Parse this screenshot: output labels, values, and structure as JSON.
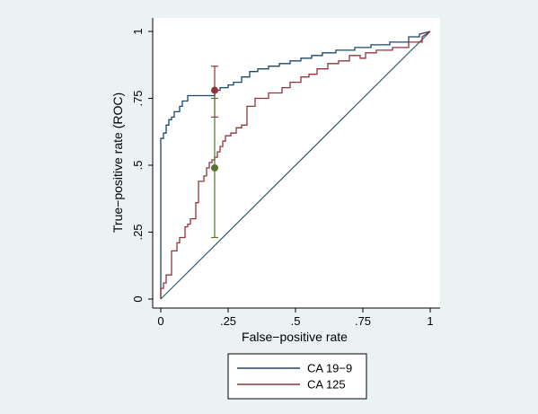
{
  "chart_data": {
    "type": "line",
    "xlabel": "False−positive rate",
    "ylabel": "True−positive rate (ROC)",
    "xlim": [
      0,
      1
    ],
    "ylim": [
      0,
      1
    ],
    "x_ticks": [
      {
        "value": 0,
        "label": "0"
      },
      {
        "value": 0.25,
        "label": ".25"
      },
      {
        "value": 0.5,
        "label": ".5"
      },
      {
        "value": 0.75,
        "label": ".75"
      },
      {
        "value": 1,
        "label": "1"
      }
    ],
    "y_ticks": [
      {
        "value": 0,
        "label": "0"
      },
      {
        "value": 0.25,
        "label": ".25"
      },
      {
        "value": 0.5,
        "label": ".5"
      },
      {
        "value": 0.75,
        "label": ".75"
      },
      {
        "value": 1,
        "label": "1"
      }
    ],
    "grid": false,
    "legend_position": "bottom",
    "reference_line": {
      "x": [
        0,
        1
      ],
      "y": [
        0,
        1
      ],
      "color": "#2e5b6e"
    },
    "series": [
      {
        "name": "CA 19−9",
        "color": "#1a476f",
        "x": [
          0,
          0,
          0.01,
          0.01,
          0.02,
          0.02,
          0.03,
          0.03,
          0.04,
          0.04,
          0.05,
          0.05,
          0.07,
          0.07,
          0.08,
          0.08,
          0.1,
          0.1,
          0.2,
          0.2,
          0.22,
          0.22,
          0.25,
          0.25,
          0.27,
          0.27,
          0.3,
          0.3,
          0.33,
          0.33,
          0.36,
          0.36,
          0.4,
          0.4,
          0.44,
          0.44,
          0.48,
          0.48,
          0.52,
          0.52,
          0.56,
          0.56,
          0.6,
          0.6,
          0.65,
          0.65,
          0.72,
          0.72,
          0.78,
          0.78,
          0.85,
          0.85,
          0.92,
          0.92,
          0.96,
          0.96,
          1.0
        ],
        "y": [
          0,
          0.6,
          0.6,
          0.62,
          0.62,
          0.65,
          0.65,
          0.67,
          0.67,
          0.68,
          0.68,
          0.7,
          0.7,
          0.72,
          0.72,
          0.74,
          0.74,
          0.76,
          0.76,
          0.78,
          0.78,
          0.79,
          0.79,
          0.8,
          0.8,
          0.81,
          0.81,
          0.83,
          0.83,
          0.85,
          0.85,
          0.86,
          0.86,
          0.87,
          0.87,
          0.88,
          0.88,
          0.89,
          0.89,
          0.9,
          0.9,
          0.91,
          0.91,
          0.92,
          0.92,
          0.93,
          0.93,
          0.94,
          0.94,
          0.95,
          0.95,
          0.96,
          0.96,
          0.98,
          0.98,
          0.99,
          1.0
        ]
      },
      {
        "name": "CA 125",
        "color": "#90353b",
        "x": [
          0,
          0,
          0.01,
          0.01,
          0.02,
          0.02,
          0.04,
          0.04,
          0.06,
          0.06,
          0.07,
          0.07,
          0.09,
          0.09,
          0.1,
          0.1,
          0.11,
          0.11,
          0.13,
          0.13,
          0.14,
          0.14,
          0.16,
          0.16,
          0.17,
          0.17,
          0.18,
          0.18,
          0.19,
          0.19,
          0.2,
          0.2,
          0.21,
          0.21,
          0.22,
          0.22,
          0.23,
          0.23,
          0.24,
          0.24,
          0.26,
          0.26,
          0.28,
          0.28,
          0.3,
          0.3,
          0.32,
          0.32,
          0.35,
          0.35,
          0.4,
          0.4,
          0.45,
          0.45,
          0.48,
          0.48,
          0.52,
          0.52,
          0.55,
          0.55,
          0.58,
          0.58,
          0.62,
          0.62,
          0.66,
          0.66,
          0.7,
          0.7,
          0.74,
          0.74,
          0.76,
          0.76,
          0.8,
          0.8,
          0.86,
          0.86,
          0.92,
          0.92,
          0.97,
          0.97,
          1.0
        ],
        "y": [
          0,
          0.04,
          0.04,
          0.06,
          0.06,
          0.09,
          0.09,
          0.18,
          0.18,
          0.21,
          0.21,
          0.23,
          0.23,
          0.27,
          0.27,
          0.28,
          0.28,
          0.3,
          0.3,
          0.36,
          0.36,
          0.44,
          0.44,
          0.46,
          0.46,
          0.49,
          0.49,
          0.51,
          0.51,
          0.52,
          0.52,
          0.53,
          0.53,
          0.55,
          0.55,
          0.57,
          0.57,
          0.59,
          0.59,
          0.61,
          0.61,
          0.62,
          0.62,
          0.64,
          0.64,
          0.65,
          0.65,
          0.72,
          0.72,
          0.75,
          0.75,
          0.77,
          0.77,
          0.79,
          0.79,
          0.81,
          0.81,
          0.83,
          0.83,
          0.84,
          0.84,
          0.86,
          0.86,
          0.88,
          0.88,
          0.89,
          0.89,
          0.91,
          0.91,
          0.9,
          0.9,
          0.92,
          0.92,
          0.93,
          0.93,
          0.94,
          0.94,
          0.96,
          0.96,
          0.98,
          1.0
        ]
      }
    ],
    "points": [
      {
        "x": 0.2,
        "y": 0.78,
        "color": "#90353b"
      },
      {
        "x": 0.2,
        "y": 0.49,
        "color": "#55752f"
      }
    ],
    "error_bars": [
      {
        "x": 0.2,
        "low": 0.68,
        "high": 0.87,
        "color": "#90353b"
      },
      {
        "x": 0.2,
        "low": 0.23,
        "high": 0.75,
        "color": "#55752f"
      }
    ]
  }
}
